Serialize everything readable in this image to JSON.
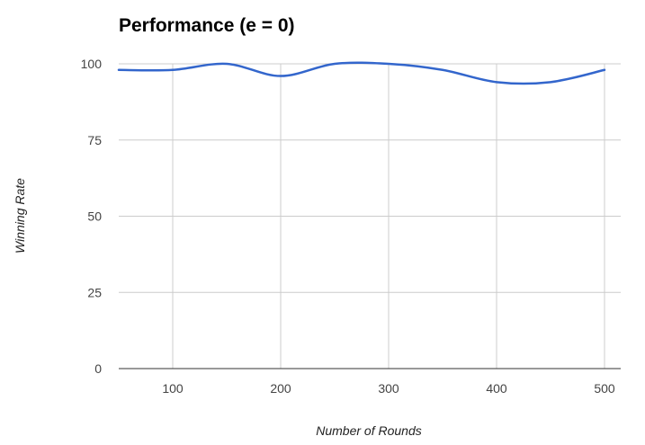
{
  "chart_data": {
    "type": "line",
    "title": "Performance (e = 0)",
    "xlabel": "Number of Rounds",
    "ylabel": "Winning Rate",
    "xlim": [
      50,
      515
    ],
    "ylim": [
      0,
      100
    ],
    "x_ticks": [
      100,
      200,
      300,
      400,
      500
    ],
    "y_ticks": [
      0,
      25,
      50,
      75,
      100
    ],
    "grid": true,
    "legend": "none",
    "series": [
      {
        "color": "#3366cc",
        "x": [
          50,
          100,
          150,
          200,
          250,
          300,
          350,
          400,
          450,
          500
        ],
        "y": [
          98,
          98,
          100,
          96,
          100,
          100,
          98,
          94,
          94,
          98
        ]
      }
    ]
  }
}
